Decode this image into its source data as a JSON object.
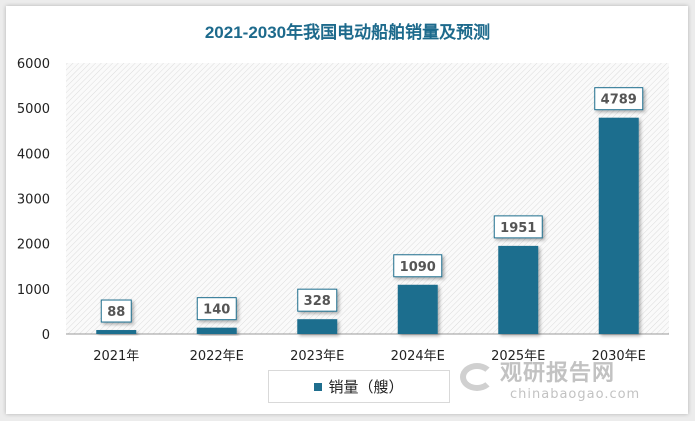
{
  "chart_data": {
    "type": "bar",
    "title": "2021-2030年我国电动船舶销量及预测",
    "categories": [
      "2021年",
      "2022年E",
      "2023年E",
      "2024年E",
      "2025年E",
      "2030年E"
    ],
    "series": [
      {
        "name": "销量（艘）",
        "values": [
          88,
          140,
          328,
          1090,
          1951,
          4789
        ]
      }
    ],
    "ylim": [
      0,
      6000
    ],
    "yticks": [
      0,
      1000,
      2000,
      3000,
      4000,
      5000,
      6000
    ],
    "xlabel": "",
    "ylabel": "",
    "legend": "bottom",
    "grid": false,
    "colors": {
      "bar": "#1f6e8e",
      "title": "#1d6a8c"
    }
  },
  "watermark": {
    "cn": "观研报告网",
    "en": "chinabaogao.com"
  }
}
